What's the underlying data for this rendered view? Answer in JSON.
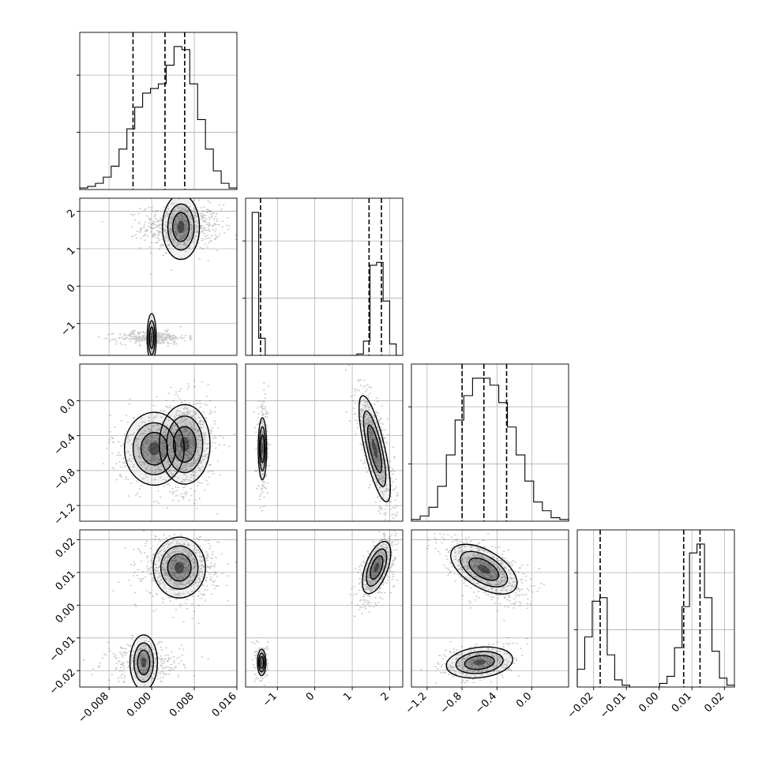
{
  "chart_data": {
    "type": "corner",
    "parameters": 4,
    "ranges": [
      [
        -0.0135,
        0.016
      ],
      [
        -1.85,
        2.35
      ],
      [
        -1.38,
        0.42
      ],
      [
        -0.025,
        0.023
      ]
    ],
    "ticks": [
      [
        -0.008,
        0.0,
        0.008,
        0.016
      ],
      [
        -1,
        0,
        1,
        2
      ],
      [
        -1.2,
        -0.8,
        -0.4,
        0.0
      ],
      [
        -0.02,
        -0.01,
        0.0,
        0.01,
        0.02
      ]
    ],
    "tick_labels": [
      [
        "−0.008",
        "0.000",
        "0.008",
        "0.016"
      ],
      [
        "−1",
        "0",
        "1",
        "2"
      ],
      [
        "−1.2",
        "−0.8",
        "−0.4",
        "0.0"
      ],
      [
        "−0.02",
        "−0.01",
        "0.00",
        "0.01",
        "0.02"
      ]
    ],
    "histograms": [
      {
        "counts": [
          1,
          2,
          4,
          8,
          15,
          26,
          39,
          53,
          62,
          65,
          68,
          80,
          92,
          90,
          68,
          45,
          26,
          12,
          4,
          1
        ],
        "quantiles": [
          -0.0035,
          0.0025,
          0.0062
        ]
      },
      {
        "counts": [
          0,
          100,
          12,
          0,
          0,
          0,
          0,
          0,
          0,
          0,
          0,
          0,
          0,
          0,
          0,
          0,
          0,
          1,
          10,
          63,
          65,
          38,
          8,
          0
        ],
        "quantiles": [
          -1.45,
          1.45,
          1.78
        ]
      },
      {
        "counts": [
          1,
          3,
          8,
          20,
          38,
          58,
          72,
          82,
          82,
          78,
          68,
          54,
          38,
          23,
          11,
          6,
          2,
          1
        ],
        "quantiles": [
          -0.8,
          -0.55,
          -0.29
        ]
      },
      {
        "counts": [
          10,
          28,
          48,
          50,
          18,
          4,
          1,
          0,
          0,
          0,
          0,
          2,
          6,
          22,
          45,
          75,
          80,
          50,
          20,
          5,
          1
        ],
        "quantiles": [
          -0.018,
          0.0075,
          0.0125
        ]
      }
    ],
    "panels_2d": [
      {
        "x": 0,
        "y": 1,
        "clusters": [
          {
            "x": 0.0055,
            "y": 1.58,
            "sx": 0.0032,
            "sy": 0.26,
            "r": 0,
            "w": 1.0
          },
          {
            "x": 0.0,
            "y": -1.38,
            "sx": 0.0028,
            "sy": 0.075,
            "r": 0,
            "w": 0.45
          }
        ]
      },
      {
        "x": 0,
        "y": 2,
        "clusters": [
          {
            "x": 0.0062,
            "y": -0.5,
            "sx": 0.0025,
            "sy": 0.24,
            "r": 0,
            "w": 1.0
          },
          {
            "x": 0.0005,
            "y": -0.55,
            "sx": 0.0036,
            "sy": 0.18,
            "r": 0,
            "w": 0.55
          }
        ]
      },
      {
        "x": 1,
        "y": 2,
        "clusters": [
          {
            "x": 1.6,
            "y": -0.55,
            "sx": 0.22,
            "sy": 0.32,
            "r": -0.75,
            "w": 1.0
          },
          {
            "x": -1.4,
            "y": -0.55,
            "sx": 0.07,
            "sy": 0.22,
            "r": 0,
            "w": 0.35
          }
        ]
      },
      {
        "x": 0,
        "y": 3,
        "clusters": [
          {
            "x": 0.0052,
            "y": 0.0115,
            "sx": 0.003,
            "sy": 0.0042,
            "r": 0,
            "w": 1.0
          },
          {
            "x": -0.0015,
            "y": -0.0175,
            "sx": 0.0032,
            "sy": 0.0026,
            "r": 0,
            "w": 0.45
          }
        ]
      },
      {
        "x": 1,
        "y": 3,
        "clusters": [
          {
            "x": 1.65,
            "y": 0.0115,
            "sx": 0.2,
            "sy": 0.0042,
            "r": 0.55,
            "w": 1.0
          },
          {
            "x": -1.42,
            "y": -0.0175,
            "sx": 0.07,
            "sy": 0.0025,
            "r": 0,
            "w": 0.3
          }
        ]
      },
      {
        "x": 2,
        "y": 3,
        "clusters": [
          {
            "x": -0.55,
            "y": 0.011,
            "sx": 0.2,
            "sy": 0.004,
            "r": -0.55,
            "w": 1.0
          },
          {
            "x": -0.6,
            "y": -0.0175,
            "sx": 0.2,
            "sy": 0.0025,
            "r": 0.2,
            "w": 0.5
          }
        ]
      }
    ],
    "style": {
      "hist_color": "#000000",
      "density_color": "#000000",
      "grid": true,
      "grid_color": "#b0b0b0"
    },
    "title": "",
    "xlabel": "",
    "ylabel": ""
  }
}
